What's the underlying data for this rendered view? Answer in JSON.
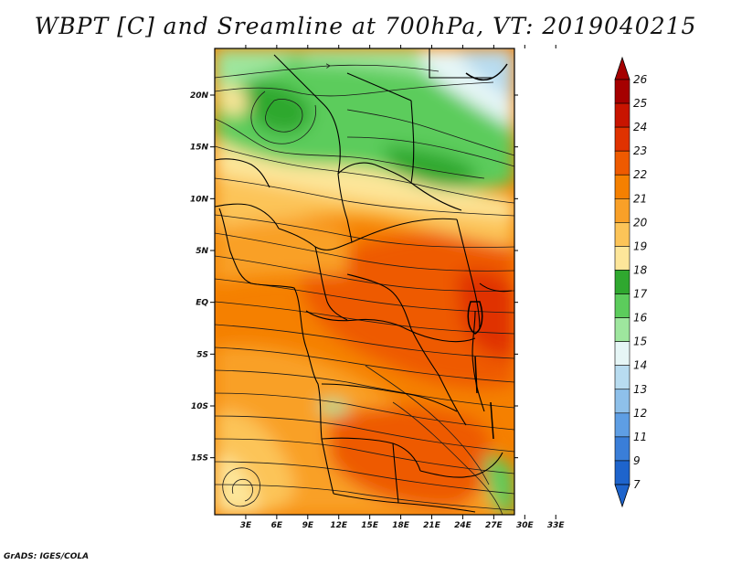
{
  "title": "WBPT [C] and Sreamline at 700hPa, VT: 2019040215",
  "footer": "GrADS: IGES/COLA",
  "map": {
    "lat_labels": [
      "20N",
      "15N",
      "10N",
      "5N",
      "EQ",
      "5S",
      "10S",
      "15S"
    ],
    "lon_labels": [
      "3E",
      "6E",
      "9E",
      "12E",
      "15E",
      "18E",
      "21E",
      "24E",
      "27E",
      "30E",
      "33E"
    ],
    "lat_range": [
      -20.5,
      24.5
    ],
    "lon_range": [
      0,
      29
    ]
  },
  "colorbar": {
    "levels": [
      "26",
      "25",
      "24",
      "23",
      "22",
      "21",
      "20",
      "19",
      "18",
      "17",
      "16",
      "15",
      "14",
      "13",
      "12",
      "11",
      "9",
      "7"
    ],
    "colors": [
      "#a50000",
      "#c81400",
      "#e03200",
      "#ee5a00",
      "#f58000",
      "#f9a028",
      "#fcc458",
      "#fde69a",
      "#2fa82f",
      "#5ccc5c",
      "#9ee69e",
      "#e6f6f6",
      "#b8dcf0",
      "#8ec0ea",
      "#5e9ee4",
      "#3a7ed8",
      "#1e64cc"
    ]
  },
  "colors": {
    "background": "#ffffff",
    "border": "#000000",
    "streamline": "#1a1a1a"
  }
}
